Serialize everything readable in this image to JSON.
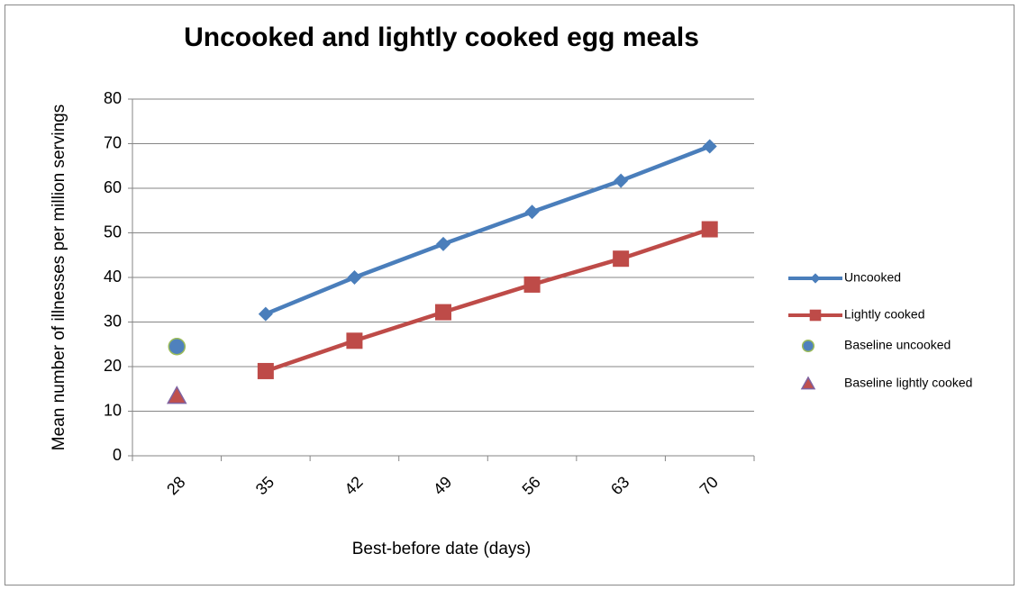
{
  "chart_data": {
    "type": "line",
    "title": "Uncooked and lightly cooked egg meals",
    "x_label": "Best-before date (days)",
    "y_label": "Mean number of illnesses per million servings",
    "categories": [
      "28",
      "35",
      "42",
      "49",
      "56",
      "63",
      "70"
    ],
    "series": [
      {
        "name": "Uncooked",
        "color": "#4a7ebb",
        "marker": "diamond",
        "line": true,
        "values": [
          null,
          31.8,
          40.0,
          47.5,
          54.7,
          61.7,
          69.4
        ]
      },
      {
        "name": "Lightly cooked",
        "color": "#be4b48",
        "marker": "square",
        "line": true,
        "values": [
          null,
          19.0,
          25.8,
          32.2,
          38.4,
          44.2,
          50.8
        ]
      },
      {
        "name": "Baseline uncooked",
        "color": "#4f81bd",
        "marker": "circle",
        "line": false,
        "values": [
          24.5,
          null,
          null,
          null,
          null,
          null,
          null
        ]
      },
      {
        "name": "Baseline lightly cooked",
        "color": "#c0504d",
        "marker": "triangle",
        "line": false,
        "values": [
          13.4,
          null,
          null,
          null,
          null,
          null,
          null
        ]
      }
    ],
    "ylim": [
      0,
      80
    ],
    "yticks": [
      0,
      10,
      20,
      30,
      40,
      50,
      60,
      70,
      80
    ],
    "grid": true,
    "legend": "right"
  }
}
